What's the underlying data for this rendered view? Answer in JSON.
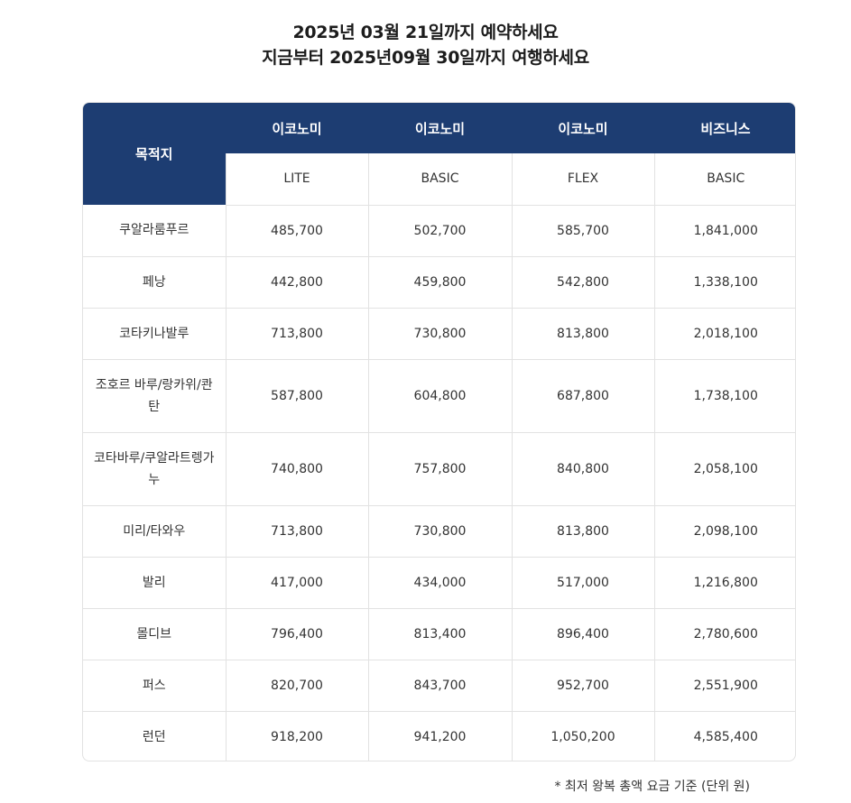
{
  "header": {
    "line1": "2025년 03월 21일까지 예약하세요",
    "line2": "지금부터 2025년09월 30일까지 여행하세요"
  },
  "table": {
    "destination_header": "목적지",
    "cabins": [
      "이코노미",
      "이코노미",
      "이코노미",
      "비즈니스"
    ],
    "fare_types": [
      "LITE",
      "BASIC",
      "FLEX",
      "BASIC"
    ],
    "rows": [
      {
        "destination": "쿠알라룸푸르",
        "prices": [
          "485,700",
          "502,700",
          "585,700",
          "1,841,000"
        ]
      },
      {
        "destination": "페낭",
        "prices": [
          "442,800",
          "459,800",
          "542,800",
          "1,338,100"
        ]
      },
      {
        "destination": "코타키나발루",
        "prices": [
          "713,800",
          "730,800",
          "813,800",
          "2,018,100"
        ]
      },
      {
        "destination": "조호르 바루/랑카위/콴탄",
        "prices": [
          "587,800",
          "604,800",
          "687,800",
          "1,738,100"
        ]
      },
      {
        "destination": "코타바루/쿠알라트렝가누",
        "prices": [
          "740,800",
          "757,800",
          "840,800",
          "2,058,100"
        ]
      },
      {
        "destination": "미리/타와우",
        "prices": [
          "713,800",
          "730,800",
          "813,800",
          "2,098,100"
        ]
      },
      {
        "destination": "발리",
        "prices": [
          "417,000",
          "434,000",
          "517,000",
          "1,216,800"
        ]
      },
      {
        "destination": "몰디브",
        "prices": [
          "796,400",
          "813,400",
          "896,400",
          "2,780,600"
        ]
      },
      {
        "destination": "퍼스",
        "prices": [
          "820,700",
          "843,700",
          "952,700",
          "2,551,900"
        ]
      },
      {
        "destination": "런던",
        "prices": [
          "918,200",
          "941,200",
          "1,050,200",
          "4,585,400"
        ]
      }
    ]
  },
  "footnote": "* 최저 왕복 총액 요금 기준 (단위 원)",
  "colors": {
    "header_navy": "#1d3d72",
    "border": "#e2e2e2",
    "text": "#333333"
  }
}
